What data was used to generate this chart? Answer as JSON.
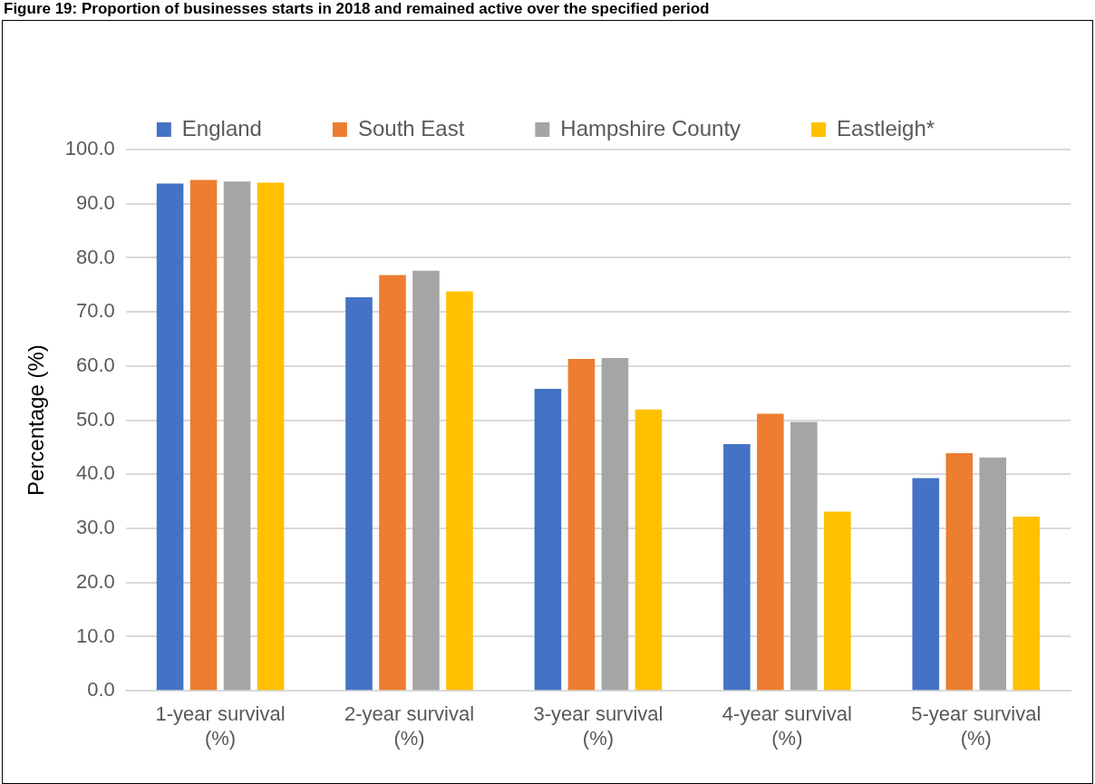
{
  "chart_data": {
    "type": "bar",
    "title": "Figure 19: Proportion of businesses starts in 2018 and remained active over the specified period",
    "ylabel": "Percentage (%)",
    "categories": [
      "1-year survival (%)",
      "2-year survival (%)",
      "3-year survival (%)",
      "4-year survival (%)",
      "5-year survival (%)"
    ],
    "series": [
      {
        "name": "England",
        "color": "#4472c4",
        "values": [
          93.7,
          72.7,
          55.8,
          45.6,
          39.3
        ]
      },
      {
        "name": "South East",
        "color": "#ed7d31",
        "values": [
          94.4,
          76.8,
          61.3,
          51.2,
          43.9
        ]
      },
      {
        "name": "Hampshire County",
        "color": "#a5a5a5",
        "values": [
          94.1,
          77.6,
          61.5,
          49.7,
          43.1
        ]
      },
      {
        "name": "Eastleigh*",
        "color": "#ffc000",
        "values": [
          93.9,
          73.8,
          52.0,
          33.1,
          32.2
        ]
      }
    ],
    "ylim": [
      0,
      100
    ],
    "yticks": [
      {
        "value": 0,
        "label": "0.0"
      },
      {
        "value": 10,
        "label": "10.0"
      },
      {
        "value": 20,
        "label": "20.0"
      },
      {
        "value": 30,
        "label": "30.0"
      },
      {
        "value": 40,
        "label": "40.0"
      },
      {
        "value": 50,
        "label": "50.0"
      },
      {
        "value": 60,
        "label": "60.0"
      },
      {
        "value": 70,
        "label": "70.0"
      },
      {
        "value": 80,
        "label": "80.0"
      },
      {
        "value": 90,
        "label": "90.0"
      },
      {
        "value": 100,
        "label": "100.0"
      }
    ],
    "grid": "y",
    "legend": "top"
  }
}
